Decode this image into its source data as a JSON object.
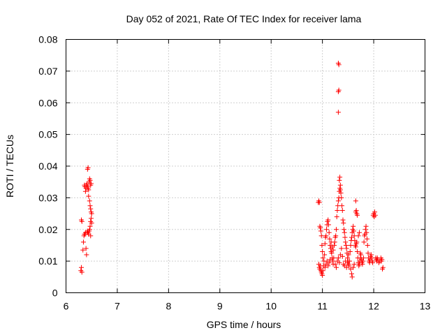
{
  "chart_data": {
    "type": "scatter",
    "title": "Day 052 of 2021, Rate Of TEC Index for receiver lama",
    "xlabel": "GPS time / hours",
    "ylabel": "ROTI / TECUs",
    "xlim": [
      6,
      13
    ],
    "ylim": [
      0,
      0.08
    ],
    "xticks": [
      6,
      7,
      8,
      9,
      10,
      11,
      12,
      13
    ],
    "xtick_labels": [
      "6",
      "7",
      "8",
      "9",
      "10",
      "11",
      "12",
      "13"
    ],
    "yticks": [
      0,
      0.01,
      0.02,
      0.03,
      0.04,
      0.05,
      0.06,
      0.07,
      0.08
    ],
    "ytick_labels": [
      "0",
      "0.01",
      "0.02",
      "0.03",
      "0.04",
      "0.05",
      "0.06",
      "0.07",
      "0.08"
    ],
    "grid": true,
    "marker": "+",
    "color": "#ff0000",
    "series": [
      {
        "name": "ROTI",
        "points": [
          [
            6.3,
            0.023
          ],
          [
            6.31,
            0.0225
          ],
          [
            6.29,
            0.007
          ],
          [
            6.3,
            0.008
          ],
          [
            6.31,
            0.0065
          ],
          [
            6.33,
            0.0135
          ],
          [
            6.34,
            0.016
          ],
          [
            6.35,
            0.018
          ],
          [
            6.36,
            0.0185
          ],
          [
            6.37,
            0.0185
          ],
          [
            6.38,
            0.019
          ],
          [
            6.39,
            0.014
          ],
          [
            6.4,
            0.012
          ],
          [
            6.41,
            0.019
          ],
          [
            6.42,
            0.0195
          ],
          [
            6.43,
            0.019
          ],
          [
            6.44,
            0.0185
          ],
          [
            6.45,
            0.0195
          ],
          [
            6.46,
            0.02
          ],
          [
            6.47,
            0.021
          ],
          [
            6.48,
            0.0225
          ],
          [
            6.49,
            0.0235
          ],
          [
            6.5,
            0.022
          ],
          [
            6.48,
            0.018
          ],
          [
            6.38,
            0.032
          ],
          [
            6.39,
            0.033
          ],
          [
            6.4,
            0.034
          ],
          [
            6.41,
            0.0345
          ],
          [
            6.42,
            0.0335
          ],
          [
            6.43,
            0.033
          ],
          [
            6.44,
            0.0325
          ],
          [
            6.45,
            0.035
          ],
          [
            6.46,
            0.036
          ],
          [
            6.47,
            0.0355
          ],
          [
            6.48,
            0.034
          ],
          [
            6.49,
            0.0345
          ],
          [
            6.42,
            0.039
          ],
          [
            6.43,
            0.0395
          ],
          [
            6.44,
            0.0305
          ],
          [
            6.46,
            0.029
          ],
          [
            6.47,
            0.0275
          ],
          [
            6.48,
            0.0265
          ],
          [
            6.49,
            0.0255
          ],
          [
            6.5,
            0.025
          ],
          [
            6.36,
            0.034
          ],
          [
            6.37,
            0.0335
          ],
          [
            10.92,
            0.0285
          ],
          [
            10.93,
            0.029
          ],
          [
            10.94,
            0.0285
          ],
          [
            10.95,
            0.021
          ],
          [
            10.96,
            0.0205
          ],
          [
            10.97,
            0.0195
          ],
          [
            10.98,
            0.018
          ],
          [
            10.99,
            0.015
          ],
          [
            11.0,
            0.013
          ],
          [
            11.01,
            0.011
          ],
          [
            10.93,
            0.009
          ],
          [
            10.94,
            0.008
          ],
          [
            10.95,
            0.0075
          ],
          [
            10.96,
            0.0085
          ],
          [
            10.97,
            0.007
          ],
          [
            10.98,
            0.0065
          ],
          [
            10.99,
            0.006
          ],
          [
            11.0,
            0.0055
          ],
          [
            11.01,
            0.007
          ],
          [
            11.02,
            0.0085
          ],
          [
            11.03,
            0.01
          ],
          [
            11.04,
            0.012
          ],
          [
            11.05,
            0.0155
          ],
          [
            11.06,
            0.0175
          ],
          [
            11.07,
            0.018
          ],
          [
            11.08,
            0.02
          ],
          [
            11.09,
            0.0215
          ],
          [
            11.1,
            0.0225
          ],
          [
            11.11,
            0.023
          ],
          [
            11.12,
            0.0215
          ],
          [
            11.13,
            0.019
          ],
          [
            11.14,
            0.017
          ],
          [
            11.15,
            0.015
          ],
          [
            11.16,
            0.014
          ],
          [
            11.17,
            0.013
          ],
          [
            11.18,
            0.0125
          ],
          [
            11.19,
            0.011
          ],
          [
            11.2,
            0.01
          ],
          [
            11.21,
            0.009
          ],
          [
            11.22,
            0.011
          ],
          [
            11.23,
            0.015
          ],
          [
            11.24,
            0.016
          ],
          [
            11.25,
            0.0175
          ],
          [
            11.26,
            0.018
          ],
          [
            11.27,
            0.02
          ],
          [
            11.28,
            0.024
          ],
          [
            11.29,
            0.026
          ],
          [
            11.3,
            0.0275
          ],
          [
            11.31,
            0.029
          ],
          [
            11.32,
            0.03
          ],
          [
            11.33,
            0.032
          ],
          [
            11.34,
            0.033
          ],
          [
            11.35,
            0.0325
          ],
          [
            11.36,
            0.0315
          ],
          [
            11.37,
            0.03
          ],
          [
            11.38,
            0.0275
          ],
          [
            11.39,
            0.026
          ],
          [
            11.4,
            0.023
          ],
          [
            11.41,
            0.022
          ],
          [
            11.42,
            0.02
          ],
          [
            11.43,
            0.019
          ],
          [
            11.44,
            0.0175
          ],
          [
            11.45,
            0.016
          ],
          [
            11.46,
            0.015
          ],
          [
            11.47,
            0.014
          ],
          [
            11.48,
            0.0125
          ],
          [
            11.49,
            0.011
          ],
          [
            11.5,
            0.01
          ],
          [
            11.51,
            0.009
          ],
          [
            11.52,
            0.0085
          ],
          [
            11.53,
            0.01
          ],
          [
            11.54,
            0.013
          ],
          [
            11.55,
            0.015
          ],
          [
            11.56,
            0.0165
          ],
          [
            11.57,
            0.0175
          ],
          [
            11.58,
            0.019
          ],
          [
            11.59,
            0.02
          ],
          [
            11.6,
            0.021
          ],
          [
            11.61,
            0.0195
          ],
          [
            11.62,
            0.018
          ],
          [
            11.63,
            0.0165
          ],
          [
            11.64,
            0.015
          ],
          [
            11.65,
            0.0145
          ],
          [
            11.66,
            0.0155
          ],
          [
            11.67,
            0.016
          ],
          [
            11.68,
            0.013
          ],
          [
            11.69,
            0.011
          ],
          [
            11.7,
            0.0095
          ],
          [
            11.71,
            0.0085
          ],
          [
            11.72,
            0.009
          ],
          [
            11.73,
            0.01
          ],
          [
            11.74,
            0.011
          ],
          [
            11.75,
            0.012
          ],
          [
            11.76,
            0.0105
          ],
          [
            11.77,
            0.0095
          ],
          [
            11.78,
            0.009
          ],
          [
            11.79,
            0.01
          ],
          [
            11.8,
            0.011
          ],
          [
            11.81,
            0.016
          ],
          [
            11.82,
            0.018
          ],
          [
            11.83,
            0.0185
          ],
          [
            11.84,
            0.02
          ],
          [
            11.85,
            0.021
          ],
          [
            11.86,
            0.019
          ],
          [
            11.87,
            0.017
          ],
          [
            11.88,
            0.015
          ],
          [
            11.89,
            0.0125
          ],
          [
            11.9,
            0.011
          ],
          [
            11.91,
            0.01
          ],
          [
            11.92,
            0.0095
          ],
          [
            11.93,
            0.0105
          ],
          [
            11.94,
            0.0115
          ],
          [
            11.95,
            0.012
          ],
          [
            11.96,
            0.011
          ],
          [
            11.97,
            0.01
          ],
          [
            11.98,
            0.0095
          ],
          [
            11.99,
            0.0245
          ],
          [
            12.0,
            0.025
          ],
          [
            12.01,
            0.024
          ],
          [
            12.02,
            0.0255
          ],
          [
            12.03,
            0.0245
          ],
          [
            12.04,
            0.011
          ],
          [
            12.05,
            0.0105
          ],
          [
            12.06,
            0.01
          ],
          [
            12.07,
            0.011
          ],
          [
            12.08,
            0.0105
          ],
          [
            12.1,
            0.0095
          ],
          [
            12.12,
            0.01
          ],
          [
            12.14,
            0.011
          ],
          [
            12.15,
            0.01
          ],
          [
            12.16,
            0.0105
          ],
          [
            12.17,
            0.0075
          ],
          [
            12.18,
            0.008
          ],
          [
            11.05,
            0.008
          ],
          [
            11.07,
            0.009
          ],
          [
            11.09,
            0.01
          ],
          [
            11.11,
            0.0085
          ],
          [
            11.13,
            0.0095
          ],
          [
            11.15,
            0.0105
          ],
          [
            11.17,
            0.016
          ],
          [
            11.19,
            0.0145
          ],
          [
            11.21,
            0.0135
          ],
          [
            11.25,
            0.009
          ],
          [
            11.27,
            0.008
          ],
          [
            11.29,
            0.01
          ],
          [
            11.31,
            0.011
          ],
          [
            11.33,
            0.0095
          ],
          [
            11.35,
            0.012
          ],
          [
            11.37,
            0.014
          ],
          [
            11.39,
            0.0115
          ],
          [
            11.41,
            0.009
          ],
          [
            11.43,
            0.0085
          ],
          [
            11.45,
            0.01
          ],
          [
            11.47,
            0.008
          ],
          [
            11.49,
            0.0095
          ],
          [
            11.51,
            0.012
          ],
          [
            11.55,
            0.0075
          ],
          [
            11.57,
            0.006
          ],
          [
            11.58,
            0.005
          ],
          [
            11.6,
            0.008
          ],
          [
            11.62,
            0.009
          ],
          [
            11.65,
            0.0255
          ],
          [
            11.66,
            0.026
          ],
          [
            11.67,
            0.025
          ],
          [
            11.68,
            0.0245
          ],
          [
            11.7,
            0.018
          ],
          [
            11.72,
            0.019
          ],
          [
            11.74,
            0.0125
          ],
          [
            11.65,
            0.029
          ],
          [
            11.31,
            0.0725
          ],
          [
            11.32,
            0.072
          ],
          [
            11.31,
            0.0635
          ],
          [
            11.32,
            0.064
          ],
          [
            11.31,
            0.057
          ],
          [
            11.33,
            0.0355
          ],
          [
            11.34,
            0.0365
          ],
          [
            11.35,
            0.034
          ]
        ]
      }
    ]
  }
}
